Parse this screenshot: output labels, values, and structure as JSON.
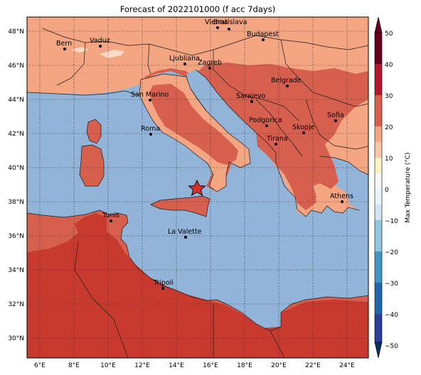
{
  "title": "Forecast of 2022101000 (f acc 7days)",
  "colorbar": {
    "label": "Max Temperature (°C)",
    "ticks": [
      "50",
      "40",
      "30",
      "20",
      "10",
      "0",
      "−10",
      "−20",
      "−30",
      "−40",
      "−50"
    ],
    "colors": [
      "#67001f",
      "#b2182b",
      "#d6604d",
      "#f4a582",
      "#fddbc7",
      "#f7f7f7",
      "#d1e5f0",
      "#92c5de",
      "#4393c3",
      "#2166ac",
      "#053061"
    ]
  },
  "axes": {
    "lon_labels": [
      "6°E",
      "8°E",
      "10°E",
      "12°E",
      "14°E",
      "16°E",
      "18°E",
      "20°E",
      "22°E",
      "24°E"
    ],
    "lat_labels": [
      "48°N",
      "46°N",
      "44°N",
      "42°N",
      "40°N",
      "38°N",
      "36°N",
      "34°N",
      "32°N",
      "30°N"
    ]
  },
  "cities": [
    {
      "name": "Bern"
    },
    {
      "name": "Vaduz"
    },
    {
      "name": "Ljubliana"
    },
    {
      "name": "Zagreb"
    },
    {
      "name": "Vienna"
    },
    {
      "name": "Bratislava"
    },
    {
      "name": "Budapest"
    },
    {
      "name": "Belgrade"
    },
    {
      "name": "Sarajevo"
    },
    {
      "name": "Podgorica"
    },
    {
      "name": "Skopje"
    },
    {
      "name": "Tirana"
    },
    {
      "name": "Sofia"
    },
    {
      "name": "San Marino"
    },
    {
      "name": "Roma"
    },
    {
      "name": "Tunis"
    },
    {
      "name": "La Valette"
    },
    {
      "name": "Tripoli"
    },
    {
      "name": "Athens"
    }
  ],
  "colors": {
    "sea": "#92b4d8",
    "warm": "#f4a582",
    "hot": "#d6604d",
    "hottest": "#c83a2e",
    "light": "#fddbc7",
    "star": "#d6302a"
  }
}
